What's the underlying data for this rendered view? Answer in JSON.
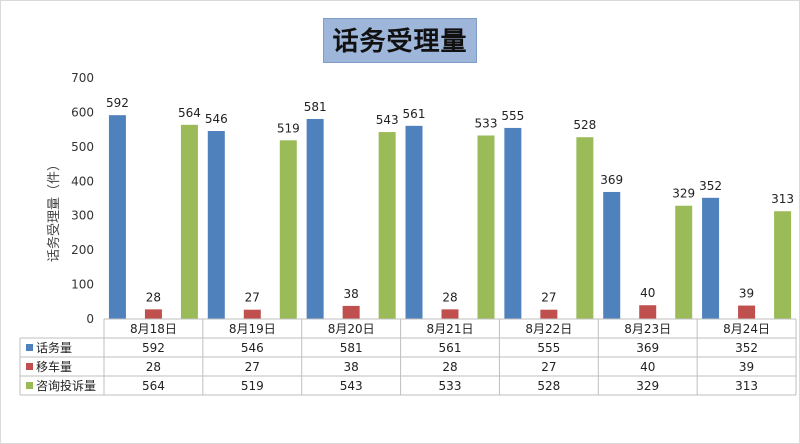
{
  "chart_data": {
    "type": "bar",
    "title": "话务受理量",
    "ylabel": "话务受理量（件）",
    "xlabel": "",
    "ylim": [
      0,
      700
    ],
    "yticks": [
      0,
      100,
      200,
      300,
      400,
      500,
      600,
      700
    ],
    "categories": [
      "8月18日",
      "8月19日",
      "8月20日",
      "8月21日",
      "8月22日",
      "8月23日",
      "8月24日"
    ],
    "series": [
      {
        "name": "话务量",
        "color": "#4f81bd",
        "values": [
          592,
          546,
          581,
          561,
          555,
          369,
          352
        ]
      },
      {
        "name": "移车量",
        "color": "#c0504d",
        "values": [
          28,
          27,
          38,
          28,
          27,
          40,
          39
        ]
      },
      {
        "name": "咨询投诉量",
        "color": "#9bbb59",
        "values": [
          564,
          519,
          543,
          533,
          528,
          329,
          313
        ]
      }
    ],
    "grid": false,
    "legend": "data-table"
  }
}
